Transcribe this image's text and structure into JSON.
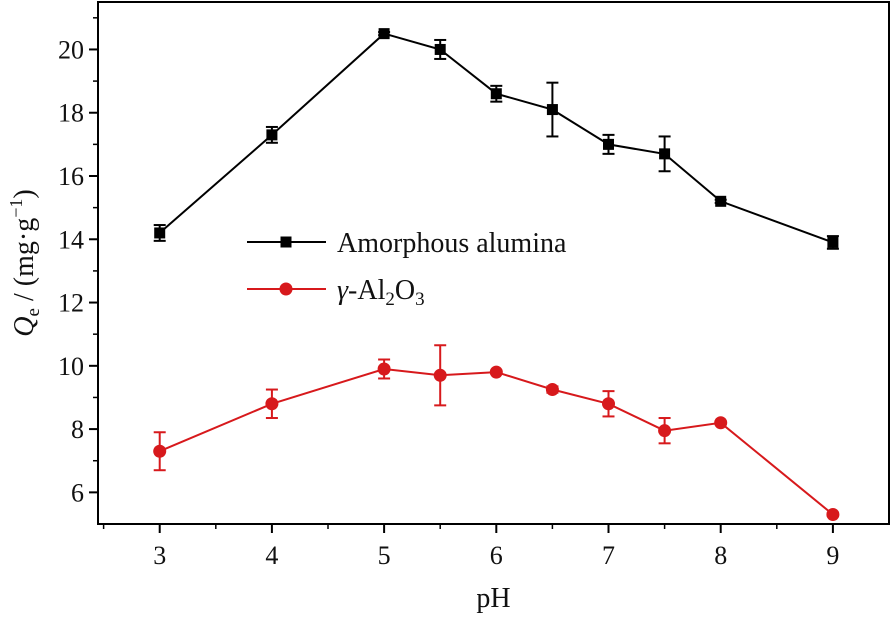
{
  "chart_data": {
    "type": "line",
    "title": "",
    "xlabel": "pH",
    "ylabel": {
      "symbol": "Q",
      "subscript": "e",
      "rest": " / (mg·g",
      "superscript": "−1",
      "close": ")"
    },
    "xlim": [
      2.45,
      9.5
    ],
    "ylim": [
      5.0,
      21.5
    ],
    "x_ticks": [
      3,
      4,
      5,
      6,
      7,
      8,
      9
    ],
    "y_ticks": [
      6,
      8,
      10,
      12,
      14,
      16,
      18,
      20
    ],
    "grid": false,
    "legend_position": "center-left",
    "series": [
      {
        "name": "Amorphous alumina",
        "legend_parts": {
          "main": "Amorphous alumina"
        },
        "color": "#000000",
        "marker": "square",
        "x": [
          3,
          4,
          5,
          5.5,
          6,
          6.5,
          7,
          7.5,
          8,
          9
        ],
        "values": [
          14.2,
          17.3,
          20.5,
          20.0,
          18.6,
          18.1,
          17.0,
          16.7,
          15.2,
          13.9
        ],
        "errors": [
          0.25,
          0.25,
          0.05,
          0.3,
          0.25,
          0.85,
          0.3,
          0.55,
          0.05,
          0.2
        ]
      },
      {
        "name": "γ-Al2O3",
        "legend_parts": {
          "prefix": "γ-Al",
          "sub1": "2",
          "mid": "O",
          "sub2": "3"
        },
        "color": "#d7191c",
        "marker": "circle",
        "x": [
          3,
          4,
          5,
          5.5,
          6,
          6.5,
          7,
          7.5,
          8,
          9
        ],
        "values": [
          7.3,
          8.8,
          9.9,
          9.7,
          9.8,
          9.25,
          8.8,
          7.95,
          8.2,
          5.3
        ],
        "errors": [
          0.6,
          0.45,
          0.3,
          0.95,
          0.05,
          0.1,
          0.4,
          0.4,
          0.05,
          0.05
        ]
      }
    ]
  }
}
